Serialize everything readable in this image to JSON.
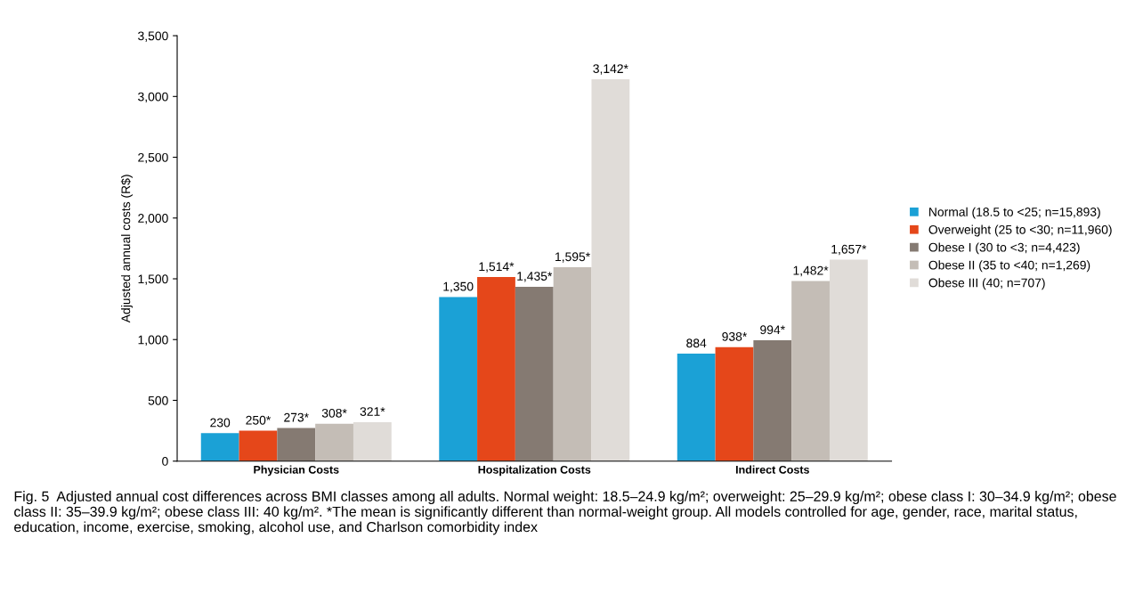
{
  "chart_data": {
    "type": "bar",
    "ylabel": "Adjusted annual costs (R$)",
    "categories": [
      "Physician Costs",
      "Hospitalization Costs",
      "Indirect Costs"
    ],
    "series": [
      {
        "name": "Normal (18.5 to <25; n=15,893)",
        "color": "#1ba1d6",
        "values": [
          230,
          1350,
          884
        ],
        "value_labels": [
          "230",
          "1,350",
          "884"
        ]
      },
      {
        "name": "Overweight (25 to <30; n=11,960)",
        "color": "#e5471a",
        "values": [
          250,
          1514,
          938
        ],
        "value_labels": [
          "250*",
          "1,514*",
          "938*"
        ]
      },
      {
        "name": "Obese I (30 to <3; n=4,423)",
        "color": "#857a72",
        "values": [
          273,
          1435,
          994
        ],
        "value_labels": [
          "273*",
          "1,435*",
          "994*"
        ]
      },
      {
        "name": "Obese II (35 to <40; n=1,269)",
        "color": "#c4bdb6",
        "values": [
          308,
          1595,
          1482
        ],
        "value_labels": [
          "308*",
          "1,595*",
          "1,482*"
        ]
      },
      {
        "name": "Obese III (40; n=707)",
        "color": "#e0dcd8",
        "values": [
          321,
          3142,
          1657
        ],
        "value_labels": [
          "321*",
          "3,142*",
          "1,657*"
        ]
      }
    ],
    "ylim": [
      0,
      3500
    ],
    "yticks": [
      {
        "value": 0,
        "label": "0"
      },
      {
        "value": 500,
        "label": "500"
      },
      {
        "value": 1000,
        "label": "1,000"
      },
      {
        "value": 1500,
        "label": "1,500"
      },
      {
        "value": 2000,
        "label": "2,000"
      },
      {
        "value": 2500,
        "label": "2,500"
      },
      {
        "value": 3000,
        "label": "3,000"
      },
      {
        "value": 3500,
        "label": "3,500"
      }
    ],
    "legend": "right",
    "grid": false,
    "annotations": [
      "Fig. 5  Adjusted annual cost differences across BMI classes among all adults. Normal weight: 18.5–24.9 kg/m²; overweight: 25–29.9 kg/m²; obese class I: 30–34.9 kg/m²; obese class II: 35–39.9 kg/m²; obese class III: 40 kg/m². *The mean is significantly different than normal-weight group. All models controlled for age, gender, race, marital status, education, income, exercise, smoking, alcohol use, and Charlson comorbidity index"
    ]
  }
}
